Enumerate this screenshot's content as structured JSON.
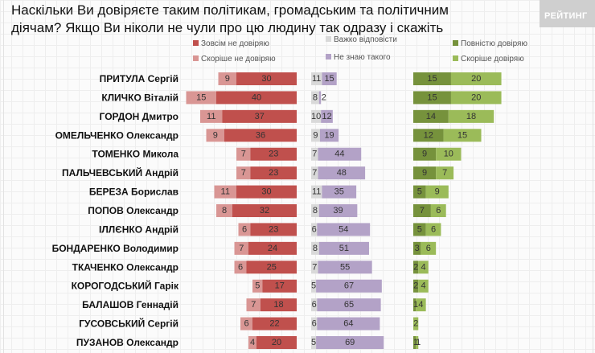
{
  "chart_data": {
    "type": "bar",
    "subtype": "diverging-stacked-horizontal",
    "title": "Наскільки Ви довіряєте таким політикам, громадським та політичним діячам? Якщо Ви ніколи не чули про цю людину так одразу і скажіть",
    "brand": "РЕЙТИНГ",
    "colors": {
      "not_trust_at_all": "#c0504d",
      "rather_not_trust": "#d99694",
      "hard_to_say": "#d9d9d9",
      "dont_know": "#b3a2c7",
      "fully_trust": "#76923c",
      "rather_trust": "#9bbb59"
    },
    "legend": [
      {
        "key": "not_trust_at_all",
        "label": "Зовсім не довіряю"
      },
      {
        "key": "rather_not_trust",
        "label": "Скоріше не довіряю"
      },
      {
        "key": "hard_to_say",
        "label": "Важко відповісти"
      },
      {
        "key": "dont_know",
        "label": "Не знаю такого"
      },
      {
        "key": "fully_trust",
        "label": "Повністю довіряю"
      },
      {
        "key": "rather_trust",
        "label": "Скоріше довіряю"
      }
    ],
    "categories": [
      "ПРИТУЛА Сергій",
      "КЛИЧКО Віталій",
      "ГОРДОН Дмитро",
      "ОМЕЛЬЧЕНКО Олександр",
      "ТОМЕНКО Микола",
      "ПАЛЬЧЕВСЬКИЙ Андрій",
      "БЕРЕЗА Борислав",
      "ПОПОВ Олександр",
      "ІЛЛЄНКО Андрій",
      "БОНДАРЕНКО Володимир",
      "ТКАЧЕНКО Олександр",
      "КОРОГОДСЬКИЙ Гарік",
      "БАЛАШОВ Геннадій",
      "ГУСОВСЬКИЙ Сергій",
      "ПУЗАНОВ Олександр"
    ],
    "series": [
      {
        "name": "Зовсім не довіряю",
        "key": "not_trust_at_all",
        "values": [
          30,
          40,
          37,
          36,
          23,
          23,
          30,
          32,
          23,
          24,
          25,
          17,
          18,
          22,
          20
        ]
      },
      {
        "name": "Скоріше не довіряю",
        "key": "rather_not_trust",
        "values": [
          9,
          15,
          11,
          9,
          7,
          7,
          11,
          8,
          6,
          7,
          6,
          5,
          7,
          6,
          4
        ]
      },
      {
        "name": "Важко відповісти",
        "key": "hard_to_say",
        "values": [
          11,
          8,
          10,
          9,
          7,
          7,
          11,
          8,
          6,
          8,
          7,
          5,
          6,
          6,
          5
        ]
      },
      {
        "name": "Не знаю такого",
        "key": "dont_know",
        "values": [
          15,
          2,
          12,
          19,
          44,
          48,
          35,
          39,
          54,
          51,
          55,
          67,
          65,
          64,
          69
        ]
      },
      {
        "name": "Повністю довіряю",
        "key": "fully_trust",
        "values": [
          15,
          15,
          14,
          12,
          9,
          9,
          5,
          7,
          5,
          3,
          2,
          2,
          1,
          0,
          1
        ]
      },
      {
        "name": "Скоріше довіряю",
        "key": "rather_trust",
        "values": [
          20,
          20,
          18,
          15,
          10,
          7,
          9,
          6,
          6,
          6,
          4,
          4,
          4,
          2,
          1
        ]
      }
    ],
    "xlabel": "",
    "ylabel": "",
    "grid": false,
    "legend_position": "top"
  }
}
